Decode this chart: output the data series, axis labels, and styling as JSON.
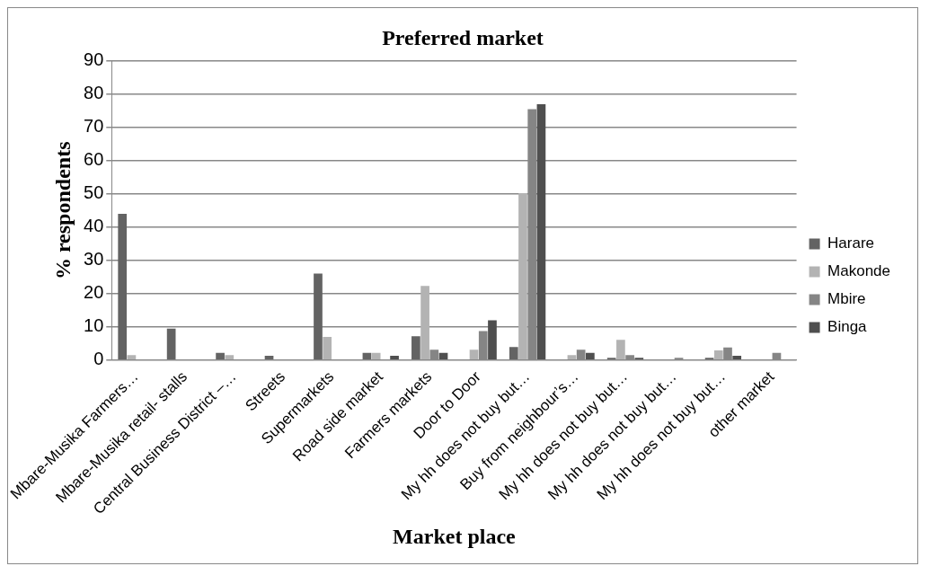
{
  "chart_data": {
    "type": "bar",
    "title": "Preferred market",
    "xlabel": "Market place",
    "ylabel": "% respondents",
    "categories": [
      "Mbare-Musika Farmers…",
      "Mbare-Musika retail- stalls",
      "Central Business District –…",
      "Streets",
      "Supermarkets",
      "Road side market",
      "Farmers markets",
      "Door to Door",
      "My hh does not buy but…",
      "Buy from neighbour’s…",
      "My hh does not buy but…",
      "My hh does not buy but…",
      "My hh does not buy but…",
      "other market"
    ],
    "series": [
      {
        "name": "Harare",
        "color": "#636363",
        "values": [
          44,
          9.5,
          2.2,
          1.3,
          26,
          2.2,
          7.2,
          0,
          3.9,
          0,
          0.7,
          0,
          0.7,
          0
        ]
      },
      {
        "name": "Makonde",
        "color": "#b3b3b3",
        "values": [
          1.5,
          0,
          1.5,
          0,
          7,
          2.2,
          22.3,
          3.1,
          50.2,
          1.5,
          6.1,
          0,
          2.9,
          0
        ]
      },
      {
        "name": "Mbire",
        "color": "#858585",
        "values": [
          0,
          0,
          0,
          0,
          0,
          0,
          3.1,
          8.7,
          75.5,
          3.1,
          1.5,
          0.7,
          3.8,
          2.2
        ]
      },
      {
        "name": "Binga",
        "color": "#4f4f4f",
        "values": [
          0,
          0,
          0,
          0,
          0,
          1.3,
          2.2,
          12,
          77,
          2.2,
          0.7,
          0,
          1.3,
          0
        ]
      }
    ],
    "ylim": [
      0,
      90
    ],
    "yticks": [
      0,
      10,
      20,
      30,
      40,
      50,
      60,
      70,
      80,
      90
    ],
    "grid": "y",
    "legend": "right"
  }
}
